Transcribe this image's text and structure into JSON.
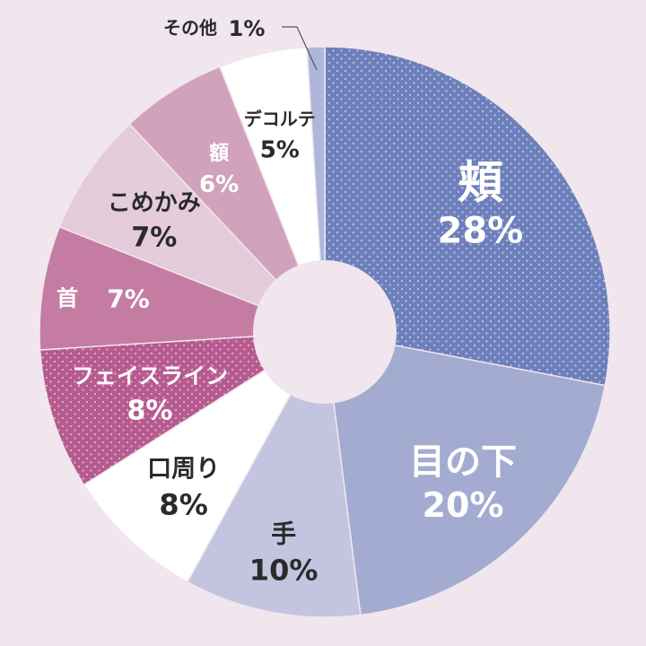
{
  "chart_data": {
    "type": "pie",
    "style": "donut",
    "title": "",
    "categories": [
      "頬",
      "目の下",
      "手",
      "口周り",
      "フェイスライン",
      "首",
      "こめかみ",
      "額",
      "デコルテ",
      "その他"
    ],
    "values": [
      28,
      20,
      10,
      8,
      8,
      7,
      7,
      6,
      5,
      1
    ],
    "value_labels": [
      "28%",
      "20%",
      "10%",
      "8%",
      "8%",
      "7%",
      "7%",
      "6%",
      "5%",
      "1%"
    ],
    "start": "top, clockwise",
    "colors": [
      "#6d7fbb",
      "#a3abd1",
      "#c3c5e0",
      "#ffffff",
      "#b65a8f",
      "#c47ca3",
      "#e4ccda",
      "#d1a2bb",
      "#ffffff",
      "#aeb7da"
    ],
    "dotted": [
      true,
      false,
      false,
      false,
      true,
      false,
      false,
      false,
      false,
      false
    ],
    "label_colors": [
      "#ffffff",
      "#ffffff",
      "#2a2a2a",
      "#2a2a2a",
      "#ffffff",
      "#ffffff",
      "#2a2a2a",
      "#ffffff",
      "#2a2a2a",
      "#2a2a2a"
    ],
    "background": "#f1e6ee"
  }
}
